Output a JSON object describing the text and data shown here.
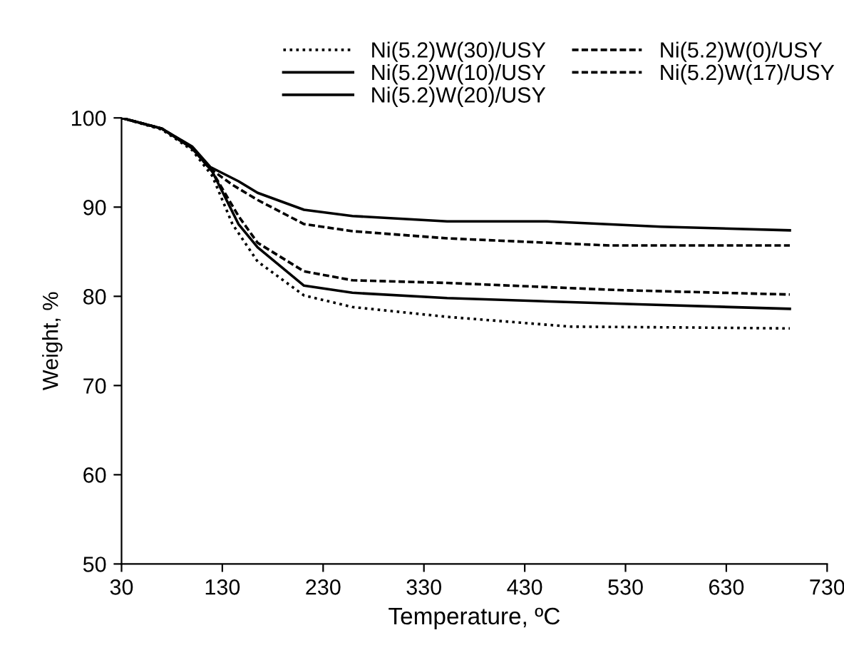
{
  "chart_data": {
    "type": "line",
    "xlabel": "Temperature, ºC",
    "ylabel": "Weight, %",
    "xlim": [
      30,
      730
    ],
    "xticks": [
      30,
      130,
      230,
      330,
      430,
      530,
      630,
      730
    ],
    "ylim": [
      50,
      100
    ],
    "yticks": [
      50,
      60,
      70,
      80,
      90,
      100
    ],
    "grid": false,
    "legend": "top",
    "marker": "none",
    "series": [
      {
        "name": "Ni(5.2)W(30)/USY",
        "color": "#000000",
        "line_style": "dotted",
        "x": [
          30,
          70,
          100,
          120,
          140,
          165,
          211,
          259,
          353,
          476,
          600,
          693
        ],
        "values": [
          100,
          98.7,
          96.4,
          93.5,
          88.1,
          83.9,
          80.1,
          78.8,
          77.7,
          76.6,
          76.5,
          76.4
        ]
      },
      {
        "name": "Ni(5.2)W(10)/USY",
        "color": "#000000",
        "line_style": "solid",
        "x": [
          30,
          70,
          100,
          120,
          146,
          165,
          211,
          259,
          353,
          543,
          693
        ],
        "values": [
          100,
          98.8,
          96.6,
          94.0,
          88.1,
          85.5,
          81.2,
          80.4,
          79.8,
          79.1,
          78.6
        ]
      },
      {
        "name": "Ni(5.2)W(20)/USY",
        "color": "#000000",
        "line_style": "solid",
        "x": [
          30,
          70,
          100,
          118,
          146,
          165,
          211,
          259,
          353,
          452,
          565,
          693
        ],
        "values": [
          100,
          98.8,
          96.8,
          94.5,
          92.9,
          91.6,
          89.7,
          89.0,
          88.4,
          88.4,
          87.8,
          87.4
        ]
      },
      {
        "name": "Ni(5.2)W(0)/USY",
        "color": "#000000",
        "line_style": "dashed",
        "x": [
          30,
          70,
          100,
          118,
          140,
          165,
          211,
          259,
          353,
          514,
          693
        ],
        "values": [
          100,
          98.8,
          96.7,
          94.3,
          92.5,
          90.8,
          88.1,
          87.3,
          86.5,
          85.7,
          85.7
        ]
      },
      {
        "name": "Ni(5.2)W(17)/USY",
        "color": "#000000",
        "line_style": "dashed",
        "x": [
          30,
          70,
          100,
          120,
          146,
          165,
          211,
          259,
          353,
          523,
          693
        ],
        "values": [
          100,
          98.8,
          96.6,
          94.0,
          89.0,
          86.0,
          82.8,
          81.8,
          81.5,
          80.7,
          80.2
        ]
      }
    ]
  }
}
